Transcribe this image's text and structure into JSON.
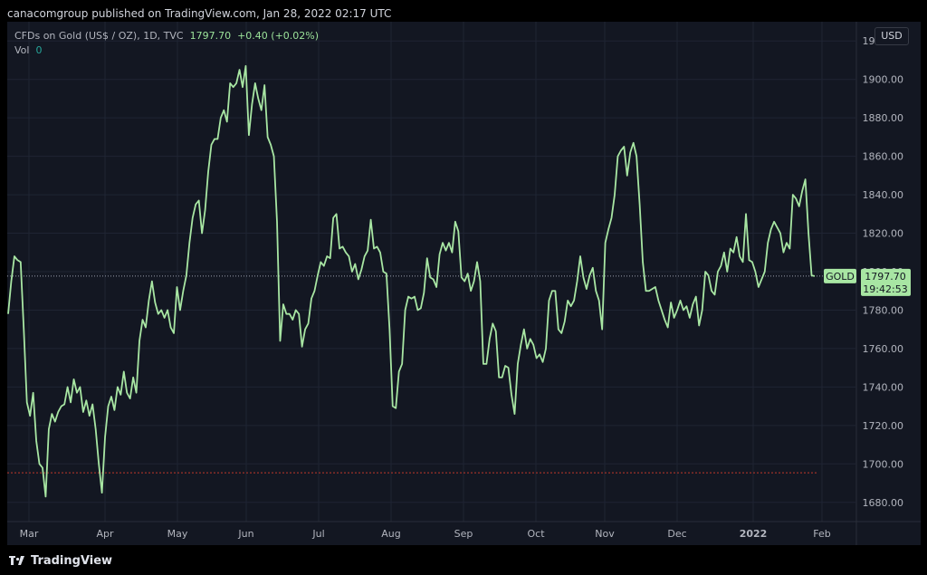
{
  "header": {
    "text": "canacomgroup published on TradingView.com, Jan 28, 2022 02:17 UTC"
  },
  "legend": {
    "symbol": "CFDs on Gold (US$ / OZ), 1D, TVC",
    "last": "1797.70",
    "change": "+0.40 (+0.02%)",
    "vol_label": "Vol",
    "vol_value": "0"
  },
  "currency": "USD",
  "price_tag": {
    "label": "GOLD",
    "price": "1797.70",
    "countdown": "19:42:53"
  },
  "footer": {
    "brand": "TradingView"
  },
  "colors": {
    "line": "#a8e6a3",
    "bg": "#131722",
    "grid": "#1f2433",
    "axis_text": "#b2b5be",
    "tag_bg": "#a8e6a3",
    "red_dots": "#c0392b"
  },
  "chart_data": {
    "type": "line",
    "series": [
      {
        "values": [
          1778,
          1795,
          1808,
          1806,
          1805,
          1770,
          1732,
          1725,
          1737,
          1712,
          1700,
          1698,
          1683,
          1718,
          1726,
          1722,
          1727,
          1730,
          1731,
          1740,
          1732,
          1744,
          1737,
          1740,
          1727,
          1733,
          1725,
          1731,
          1718,
          1700,
          1685,
          1714,
          1730,
          1735,
          1728,
          1740,
          1736,
          1748,
          1737,
          1734,
          1745,
          1737,
          1764,
          1775,
          1771,
          1785,
          1795,
          1784,
          1778,
          1780,
          1776,
          1780,
          1771,
          1768,
          1792,
          1780,
          1790,
          1798,
          1815,
          1828,
          1835,
          1837,
          1820,
          1832,
          1852,
          1866,
          1869,
          1869,
          1880,
          1884,
          1878,
          1898,
          1896,
          1898,
          1905,
          1896,
          1907,
          1871,
          1887,
          1898,
          1890,
          1884,
          1897,
          1870,
          1866,
          1860,
          1826,
          1764,
          1783,
          1778,
          1778,
          1775,
          1780,
          1778,
          1761,
          1770,
          1773,
          1786,
          1790,
          1798,
          1805,
          1803,
          1808,
          1807,
          1828,
          1830,
          1812,
          1813,
          1810,
          1808,
          1800,
          1804,
          1796,
          1801,
          1808,
          1811,
          1827,
          1812,
          1813,
          1810,
          1800,
          1799,
          1770,
          1730,
          1729,
          1748,
          1752,
          1780,
          1787,
          1786,
          1787,
          1780,
          1781,
          1789,
          1807,
          1797,
          1796,
          1792,
          1809,
          1815,
          1811,
          1815,
          1810,
          1826,
          1821,
          1797,
          1795,
          1799,
          1790,
          1795,
          1805,
          1795,
          1752,
          1752,
          1765,
          1773,
          1769,
          1745,
          1745,
          1751,
          1750,
          1736,
          1726,
          1752,
          1762,
          1770,
          1760,
          1765,
          1762,
          1755,
          1757,
          1753,
          1760,
          1785,
          1790,
          1790,
          1770,
          1768,
          1774,
          1785,
          1782,
          1785,
          1795,
          1808,
          1797,
          1791,
          1798,
          1802,
          1790,
          1785,
          1770,
          1815,
          1822,
          1828,
          1840,
          1860,
          1863,
          1865,
          1850,
          1862,
          1867,
          1860,
          1835,
          1805,
          1790,
          1790,
          1791,
          1792,
          1785,
          1780,
          1775,
          1771,
          1784,
          1776,
          1780,
          1785,
          1780,
          1782,
          1776,
          1783,
          1787,
          1772,
          1780,
          1800,
          1798,
          1790,
          1788,
          1800,
          1803,
          1810,
          1800,
          1812,
          1810,
          1818,
          1808,
          1805,
          1830,
          1806,
          1805,
          1800,
          1792,
          1796,
          1800,
          1815,
          1822,
          1826,
          1823,
          1820,
          1810,
          1815,
          1812,
          1840,
          1838,
          1834,
          1842,
          1848,
          1820,
          1798,
          1797.7
        ]
      }
    ],
    "ylim": [
      1670,
      1930
    ],
    "yticks": [
      "1920.00",
      "1900.00",
      "1880.00",
      "1860.00",
      "1840.00",
      "1820.00",
      "1800.00",
      "1780.00",
      "1760.00",
      "1740.00",
      "1720.00",
      "1700.00",
      "1680.00"
    ],
    "xticks": [
      "Mar",
      "Apr",
      "May",
      "Jun",
      "Jul",
      "Aug",
      "Sep",
      "Oct",
      "Nov",
      "Dec",
      "2022",
      "Feb"
    ],
    "hline_dashed": 1797.7,
    "hline_dotted_red": 1695.4,
    "grid": true
  }
}
